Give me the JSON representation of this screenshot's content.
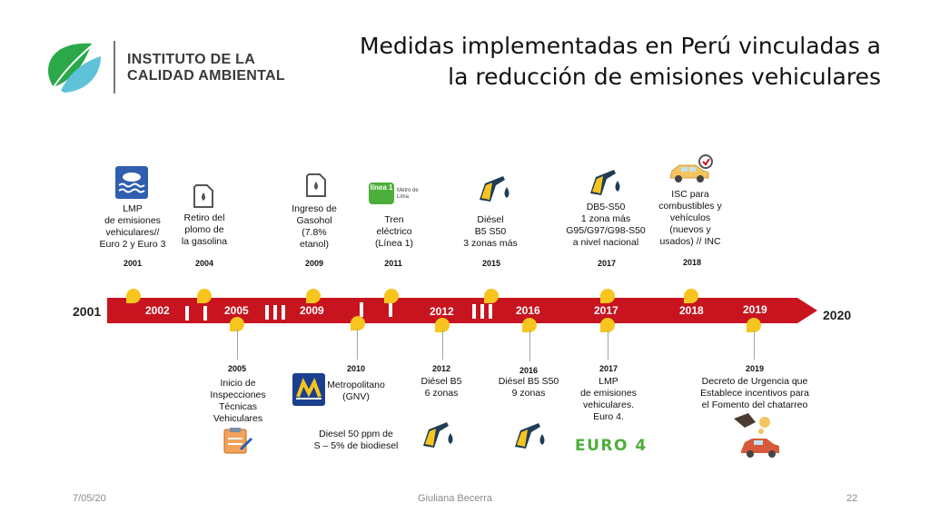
{
  "header": {
    "title_line1": "Medidas implementadas en Perú vinculadas a",
    "title_line2": "la reducción de emisiones vehiculares",
    "logo_line1": "INSTITUTO DE LA",
    "logo_line2": "CALIDAD AMBIENTAL"
  },
  "timeline": {
    "start_year": "2001",
    "end_year": "2020",
    "band_years": [
      "2002",
      "2005",
      "2009",
      "2012",
      "2016",
      "2017",
      "2018",
      "2019"
    ]
  },
  "top_events": [
    {
      "year": "2001",
      "text": "LMP\nde emisiones\nvehiculares//\nEuro 2 y Euro 3",
      "icon": "water-waves-icon"
    },
    {
      "year": "2004",
      "text": "Retiro del\nplomo de\nla gasolina",
      "icon": "fuel-can-icon"
    },
    {
      "year": "2009",
      "text": "Ingreso de\nGasohol\n(7.8%\netanol)",
      "icon": "fuel-can-icon"
    },
    {
      "year": "2011",
      "text": "Tren\neléctrico\n(Línea 1)",
      "icon": "linea1-logo",
      "logo_text": "línea 1",
      "logo_sub": "Metro de Lima"
    },
    {
      "year": "2015",
      "text": "Diésel\nB5 S50\n3 zonas más",
      "icon": "fuel-nozzle-icon"
    },
    {
      "year": "2017",
      "text": "DB5-S50\n1 zona más\nG95/G97/G98-S50\na nivel nacional",
      "icon": "fuel-nozzle-icon"
    },
    {
      "year": "2018",
      "text": "ISC para\ncombustibles y\nvehículos\n(nuevos y\nusados) // INC",
      "icon": "car-icon"
    }
  ],
  "bottom_events": [
    {
      "year": "2005",
      "text": "Inicio de\nInspecciones\nTécnicas\nVehiculares",
      "icon": "inspection-clipboard-icon"
    },
    {
      "year": "2010",
      "text": "Metropolitano\n(GNV)",
      "text2": "Diesel 50 ppm de\nS – 5% de biodiesel",
      "icon": "metropolitano-logo"
    },
    {
      "year": "2012",
      "text": "Diésel B5\n6 zonas",
      "icon": "fuel-nozzle-icon"
    },
    {
      "year": "2016",
      "text": "Diésel B5 S50\n9 zonas",
      "icon": "fuel-nozzle-icon"
    },
    {
      "year": "2017",
      "text": "LMP\nde emisiones\nvehiculares.\nEuro 4.",
      "badge": "EURO 4",
      "icon": "euro4-badge"
    },
    {
      "year": "2019",
      "text": "Decreto de Urgencia que\nEstablece incentivos para\nel Fomento del chatarreo",
      "icon": "car-incentive-icon"
    }
  ],
  "footer": {
    "date": "7/05/20",
    "author": "Giuliana Becerra",
    "page": "22"
  },
  "colors": {
    "band": "#c8141f",
    "marker": "#f7c51d",
    "logo_green": "#3cb54a",
    "euro4": "#4caf3a"
  }
}
